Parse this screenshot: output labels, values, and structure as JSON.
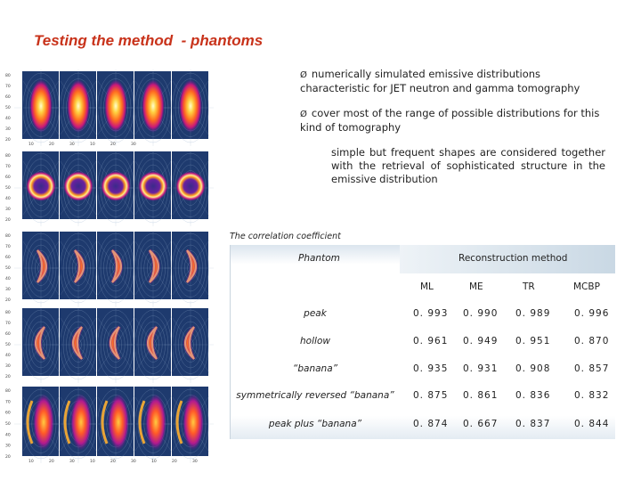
{
  "title": "Testing the method  - phantoms",
  "bullets": [
    "numerically simulated emissive distributions characteristic for JET neutron and gamma tomography",
    "cover most of the range of possible distributions for this kind of tomography"
  ],
  "bullet_glyph": "Ø",
  "note": "simple but frequent shapes are considered together with the retrieval of  sophisticated structure in the emissive distribution",
  "correlation_label": "The correlation coefficient",
  "table": {
    "header_phantom": "Phantom",
    "header_method": "Reconstruction method",
    "columns": [
      "ML",
      "ME",
      "TR",
      "MCBP"
    ],
    "rows": [
      {
        "name": "peak",
        "values": [
          "0. 993",
          "0. 990",
          "0. 989",
          "0. 996"
        ]
      },
      {
        "name": "hollow",
        "values": [
          "0. 961",
          "0. 949",
          "0. 951",
          "0. 870"
        ]
      },
      {
        "name": "“banana”",
        "values": [
          "0. 935",
          "0. 931",
          "0. 908",
          "0. 857"
        ]
      },
      {
        "name": "symmetrically reversed “banana”",
        "values": [
          "0. 875",
          "0. 861",
          "0. 836",
          "0. 832"
        ]
      },
      {
        "name": "peak plus “banana”",
        "values": [
          "0. 874",
          "0. 667",
          "0. 837",
          "0. 844"
        ]
      }
    ]
  },
  "phantom_panels": [
    {
      "shape": "peak",
      "y_ticks": [
        "20",
        "30",
        "40",
        "50",
        "60",
        "70",
        "80"
      ],
      "x_ticks": [
        "10",
        "20",
        "30",
        "10",
        "20",
        "30"
      ]
    },
    {
      "shape": "hollow",
      "y_ticks": [
        "20",
        "30",
        "40",
        "50",
        "60",
        "70",
        "80"
      ],
      "x_ticks": []
    },
    {
      "shape": "banana",
      "y_ticks": [
        "20",
        "30",
        "40",
        "50",
        "60",
        "70",
        "80"
      ],
      "x_ticks": []
    },
    {
      "shape": "reversed-banana",
      "y_ticks": [
        "20",
        "30",
        "40",
        "50",
        "60",
        "70",
        "80"
      ],
      "x_ticks": []
    },
    {
      "shape": "peak-plus-banana",
      "y_ticks": [
        "20",
        "30",
        "40",
        "50",
        "60",
        "70",
        "80"
      ],
      "x_ticks": [
        "10",
        "20",
        "30",
        "10",
        "20",
        "30",
        "10",
        "20",
        "30"
      ]
    }
  ],
  "colors": {
    "title": "#c8321a",
    "plot_bg": "#1e3a6e",
    "grid": "#8fa8c8"
  }
}
